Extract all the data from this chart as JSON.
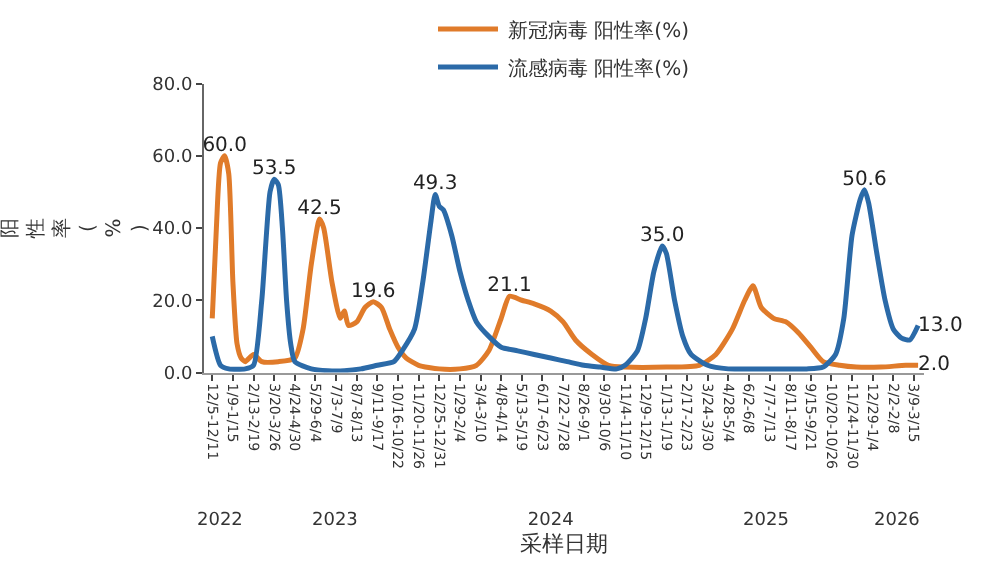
{
  "chart_data": {
    "type": "line",
    "ylabel": "阳性率(%)",
    "xlabel": "采样日期",
    "xlim": [
      "2022-11-21",
      "2026-03-26"
    ],
    "ylim": [
      0,
      80
    ],
    "yticks": [
      {
        "value": 0,
        "label": "0.0"
      },
      {
        "value": 20,
        "label": "20.0"
      },
      {
        "value": 40,
        "label": "40.0"
      },
      {
        "value": 60,
        "label": "60.0"
      },
      {
        "value": 80,
        "label": "80.0"
      }
    ],
    "xticks": [
      {
        "value": "2022-12-05",
        "label": "12/5-12/11"
      },
      {
        "value": "2023-01-09",
        "label": "1/9-1/15"
      },
      {
        "value": "2023-02-13",
        "label": "2/13-2/19"
      },
      {
        "value": "2023-03-20",
        "label": "3/20-3/26"
      },
      {
        "value": "2023-04-24",
        "label": "4/24-4/30"
      },
      {
        "value": "2023-05-29",
        "label": "5/29-6/4"
      },
      {
        "value": "2023-07-03",
        "label": "7/3-7/9"
      },
      {
        "value": "2023-08-07",
        "label": "8/7-8/13"
      },
      {
        "value": "2023-09-11",
        "label": "9/11-9/17"
      },
      {
        "value": "2023-10-16",
        "label": "10/16-10/22"
      },
      {
        "value": "2023-11-20",
        "label": "11/20-11/26"
      },
      {
        "value": "2023-12-25",
        "label": "12/25-12/31"
      },
      {
        "value": "2024-01-29",
        "label": "1/29-2/4"
      },
      {
        "value": "2024-03-04",
        "label": "3/4-3/10"
      },
      {
        "value": "2024-04-08",
        "label": "4/8-4/14"
      },
      {
        "value": "2024-05-13",
        "label": "5/13-5/19"
      },
      {
        "value": "2024-06-17",
        "label": "6/17-6/23"
      },
      {
        "value": "2024-07-22",
        "label": "7/22-7/28"
      },
      {
        "value": "2024-08-26",
        "label": "8/26-9/1"
      },
      {
        "value": "2024-09-30",
        "label": "9/30-10/6"
      },
      {
        "value": "2024-11-04",
        "label": "11/4-11/10"
      },
      {
        "value": "2024-12-09",
        "label": "12/9-12/15"
      },
      {
        "value": "2025-01-13",
        "label": "1/13-1/19"
      },
      {
        "value": "2025-02-17",
        "label": "2/17-2/23"
      },
      {
        "value": "2025-03-24",
        "label": "3/24-3/30"
      },
      {
        "value": "2025-04-28",
        "label": "4/28-5/4"
      },
      {
        "value": "2025-06-02",
        "label": "6/2-6/8"
      },
      {
        "value": "2025-07-07",
        "label": "7/7-7/13"
      },
      {
        "value": "2025-08-11",
        "label": "8/11-8/17"
      },
      {
        "value": "2025-09-15",
        "label": "9/15-9/21"
      },
      {
        "value": "2025-10-20",
        "label": "10/20-10/26"
      },
      {
        "value": "2025-11-24",
        "label": "11/24-11/30"
      },
      {
        "value": "2025-12-29",
        "label": "12/29-1/4"
      },
      {
        "value": "2026-02-02",
        "label": "2/2-2/8"
      },
      {
        "value": "2026-03-09",
        "label": "3/9-3/15"
      }
    ],
    "x2lim": [
      "2022-11-21",
      "2026-03-26"
    ],
    "x2ticks": [
      {
        "value": "2022-12-18",
        "label": "2022"
      },
      {
        "value": "2023-07-01",
        "label": "2023"
      },
      {
        "value": "2024-07-01",
        "label": "2024"
      },
      {
        "value": "2025-07-01",
        "label": "2025"
      },
      {
        "value": "2026-02-08",
        "label": "2026"
      }
    ],
    "legend": "top",
    "grid": false,
    "series": [
      {
        "name": "新冠病毒 阳性率(%)",
        "color": "#e07b2a",
        "x": [
          "2022-12-05",
          "2022-12-12",
          "2022-12-19",
          "2022-12-26",
          "2023-01-02",
          "2023-01-09",
          "2023-01-16",
          "2023-01-23",
          "2023-01-30",
          "2023-02-13",
          "2023-02-27",
          "2023-03-27",
          "2023-04-24",
          "2023-05-08",
          "2023-05-22",
          "2023-06-05",
          "2023-06-12",
          "2023-06-26",
          "2023-07-10",
          "2023-07-17",
          "2023-07-24",
          "2023-08-07",
          "2023-08-21",
          "2023-09-04",
          "2023-09-18",
          "2023-10-02",
          "2023-10-16",
          "2023-10-30",
          "2023-11-20",
          "2023-12-25",
          "2024-01-29",
          "2024-02-26",
          "2024-03-18",
          "2024-04-08",
          "2024-04-22",
          "2024-05-13",
          "2024-06-03",
          "2024-07-01",
          "2024-07-22",
          "2024-08-12",
          "2024-09-09",
          "2024-10-07",
          "2024-11-04",
          "2025-01-13",
          "2025-03-10",
          "2025-04-07",
          "2025-05-05",
          "2025-05-26",
          "2025-06-09",
          "2025-06-23",
          "2025-07-14",
          "2025-08-04",
          "2025-08-25",
          "2025-09-15",
          "2025-10-06",
          "2025-11-03",
          "2025-12-01",
          "2026-01-12",
          "2026-02-23",
          "2026-03-16"
        ],
        "values": [
          15,
          40,
          58,
          60.0,
          55,
          25,
          8,
          4,
          3,
          5,
          3,
          3,
          4,
          12,
          30,
          42.5,
          40,
          25,
          15,
          17,
          13,
          14,
          18,
          19.6,
          18,
          12,
          7,
          4,
          2,
          1,
          1,
          2,
          6,
          15,
          21.1,
          20,
          19,
          17,
          14,
          9,
          5,
          2,
          1.5,
          1.5,
          2,
          5,
          12,
          20,
          24,
          18,
          15,
          14,
          11,
          7,
          3,
          2,
          1.5,
          1.5,
          2,
          2.0
        ],
        "value_labels": [
          null,
          null,
          null,
          "60.0",
          null,
          null,
          null,
          null,
          null,
          null,
          null,
          null,
          null,
          null,
          null,
          "42.5",
          null,
          null,
          null,
          null,
          null,
          null,
          null,
          "19.6",
          null,
          null,
          null,
          null,
          null,
          null,
          null,
          null,
          null,
          null,
          "21.1",
          null,
          null,
          null,
          null,
          null,
          null,
          null,
          null,
          null,
          null,
          null,
          null,
          null,
          null,
          null,
          null,
          null,
          null,
          null,
          null,
          null,
          null,
          null,
          null,
          "2.0"
        ]
      },
      {
        "name": "流感病毒 阳性率(%)",
        "color": "#2b6aa8",
        "x": [
          "2022-12-05",
          "2022-12-19",
          "2023-01-02",
          "2023-01-30",
          "2023-02-13",
          "2023-02-27",
          "2023-03-13",
          "2023-03-20",
          "2023-03-27",
          "2023-04-03",
          "2023-04-10",
          "2023-04-17",
          "2023-04-24",
          "2023-05-22",
          "2023-06-19",
          "2023-07-17",
          "2023-08-14",
          "2023-09-11",
          "2023-10-09",
          "2023-10-23",
          "2023-11-13",
          "2023-11-27",
          "2023-12-11",
          "2023-12-18",
          "2023-12-25",
          "2024-01-01",
          "2024-01-15",
          "2024-01-29",
          "2024-02-12",
          "2024-02-26",
          "2024-03-18",
          "2024-04-08",
          "2024-05-06",
          "2024-06-03",
          "2024-07-01",
          "2024-07-29",
          "2024-08-26",
          "2024-09-23",
          "2024-10-21",
          "2024-11-04",
          "2024-11-25",
          "2024-12-09",
          "2024-12-23",
          "2025-01-06",
          "2025-01-13",
          "2025-01-27",
          "2025-02-10",
          "2025-02-24",
          "2025-03-24",
          "2025-04-28",
          "2025-06-02",
          "2025-08-04",
          "2025-09-08",
          "2025-10-06",
          "2025-10-27",
          "2025-11-10",
          "2025-11-24",
          "2025-12-08",
          "2025-12-15",
          "2025-12-22",
          "2026-01-05",
          "2026-01-19",
          "2026-02-02",
          "2026-02-16",
          "2026-03-02",
          "2026-03-16"
        ],
        "values": [
          10,
          2,
          1,
          1,
          2,
          20,
          50,
          53.5,
          52,
          40,
          20,
          8,
          3,
          1,
          0.5,
          0.5,
          1,
          2,
          3,
          6,
          12,
          25,
          42,
          49.3,
          46,
          45,
          38,
          28,
          20,
          14,
          10,
          7,
          6,
          5,
          4,
          3,
          2,
          1.5,
          1,
          2,
          6,
          15,
          28,
          35.0,
          33,
          20,
          10,
          5,
          2,
          1,
          1,
          1,
          1,
          1.5,
          5,
          15,
          38,
          48,
          50.6,
          47,
          33,
          20,
          12,
          9.5,
          9,
          13.0
        ],
        "value_labels": [
          null,
          null,
          null,
          null,
          null,
          null,
          null,
          "53.5",
          null,
          null,
          null,
          null,
          null,
          null,
          null,
          null,
          null,
          null,
          null,
          null,
          null,
          null,
          null,
          "49.3",
          null,
          null,
          null,
          null,
          null,
          null,
          null,
          null,
          null,
          null,
          null,
          null,
          null,
          null,
          null,
          null,
          null,
          null,
          null,
          "35.0",
          null,
          null,
          null,
          null,
          null,
          null,
          null,
          null,
          null,
          null,
          null,
          null,
          null,
          null,
          "50.6",
          null,
          null,
          null,
          null,
          null,
          null,
          "13.0"
        ]
      }
    ]
  }
}
